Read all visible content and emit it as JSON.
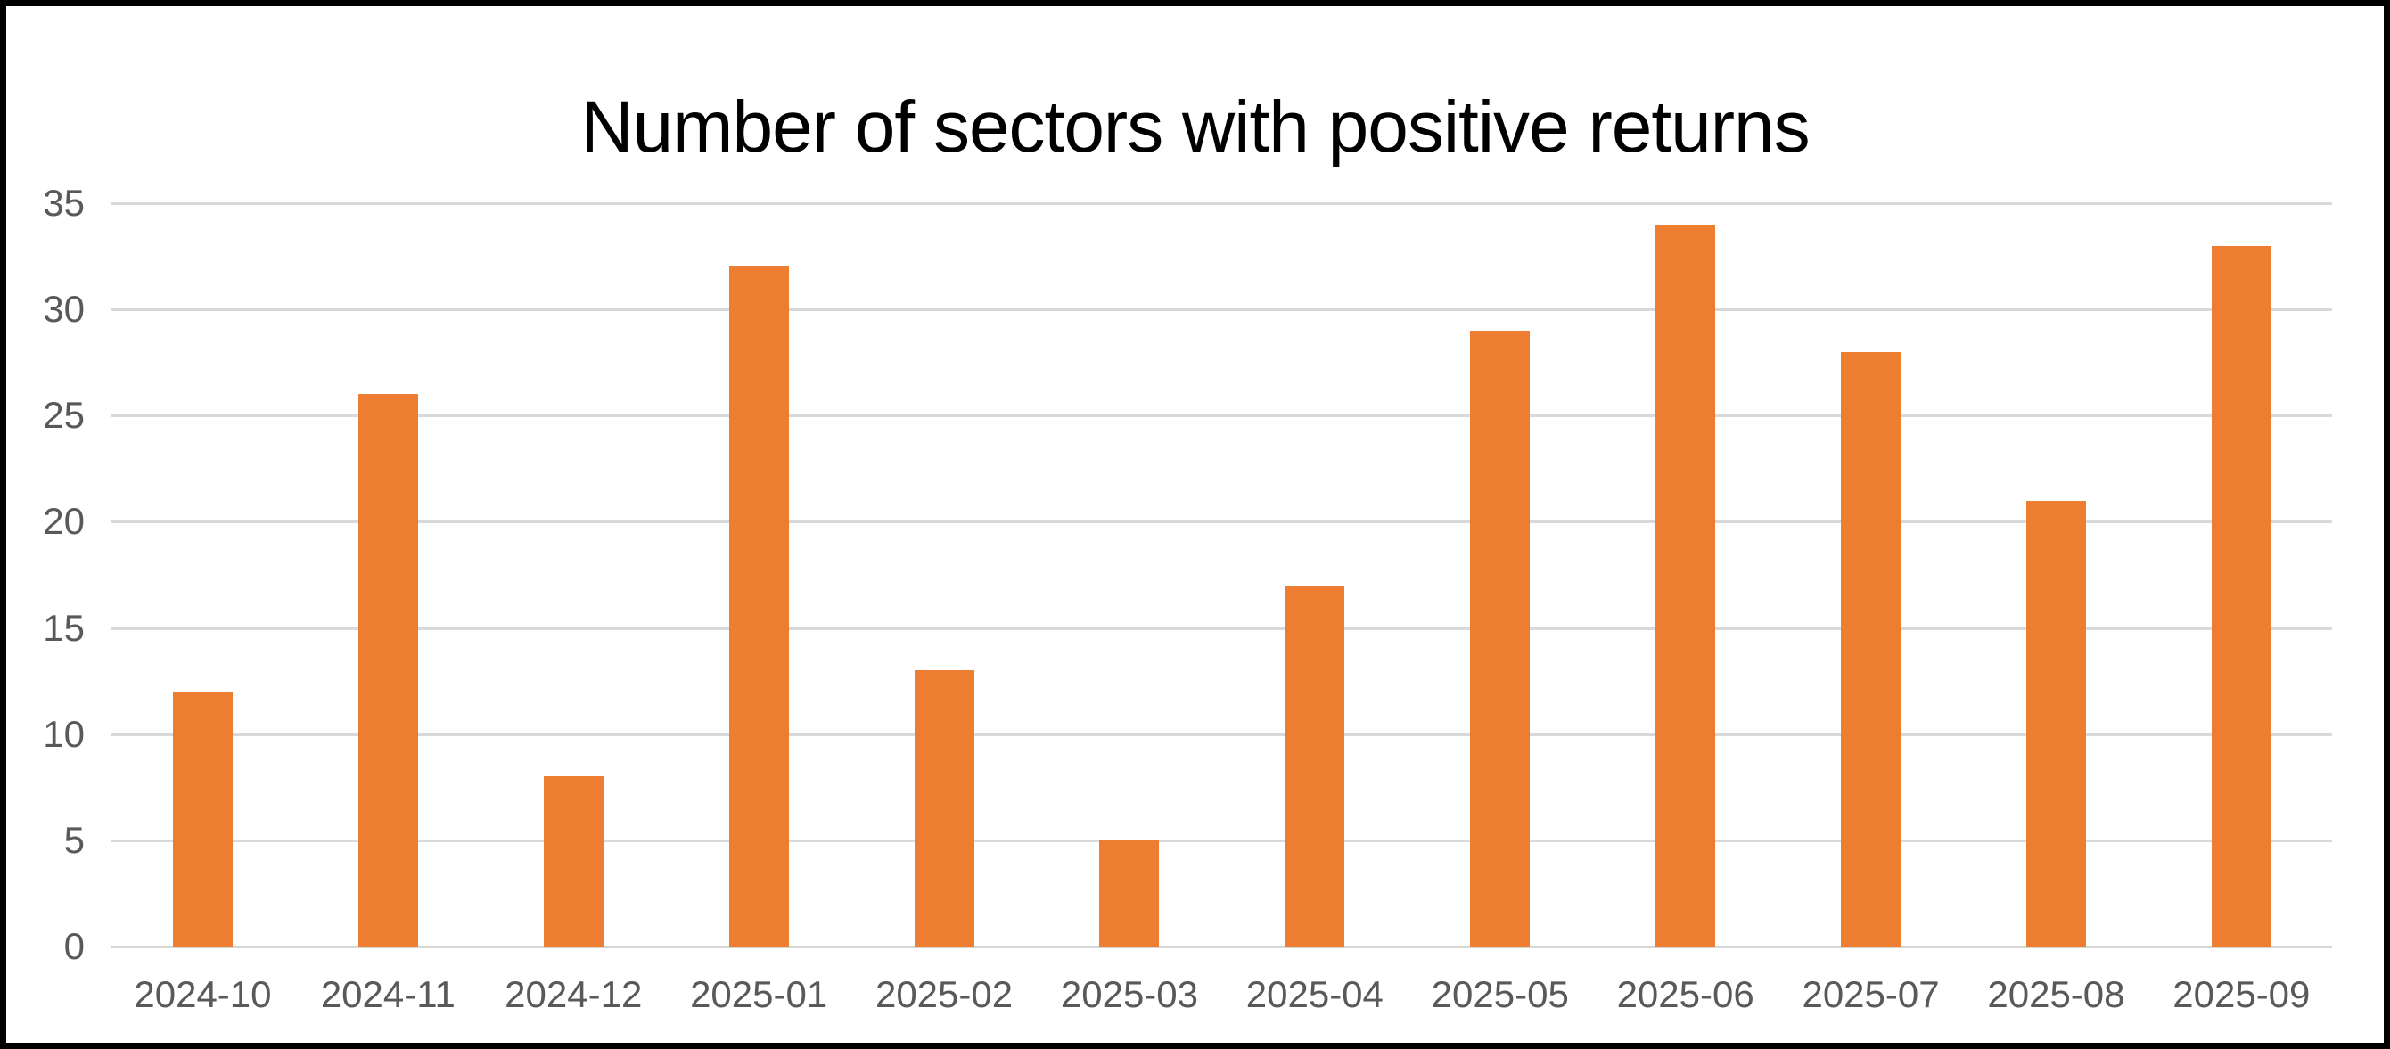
{
  "chart_data": {
    "type": "bar",
    "title": "Number of sectors with positive returns",
    "categories": [
      "2024-10",
      "2024-11",
      "2024-12",
      "2025-01",
      "2025-02",
      "2025-03",
      "2025-04",
      "2025-05",
      "2025-06",
      "2025-07",
      "2025-08",
      "2025-09"
    ],
    "values": [
      12,
      26,
      8,
      32,
      13,
      5,
      17,
      29,
      34,
      28,
      21,
      33
    ],
    "xlabel": "",
    "ylabel": "",
    "ylim": [
      0,
      35
    ],
    "yticks": [
      0,
      5,
      10,
      15,
      20,
      25,
      30,
      35
    ],
    "grid": "horizontal",
    "legend": "none",
    "colors": {
      "bar": "#ed7d31",
      "gridline": "#d9d9d9",
      "axis_line": "#d6d6d6",
      "tick_label": "#595959",
      "title": "#000000",
      "background": "#ffffff",
      "frame_border": "#000000"
    }
  }
}
